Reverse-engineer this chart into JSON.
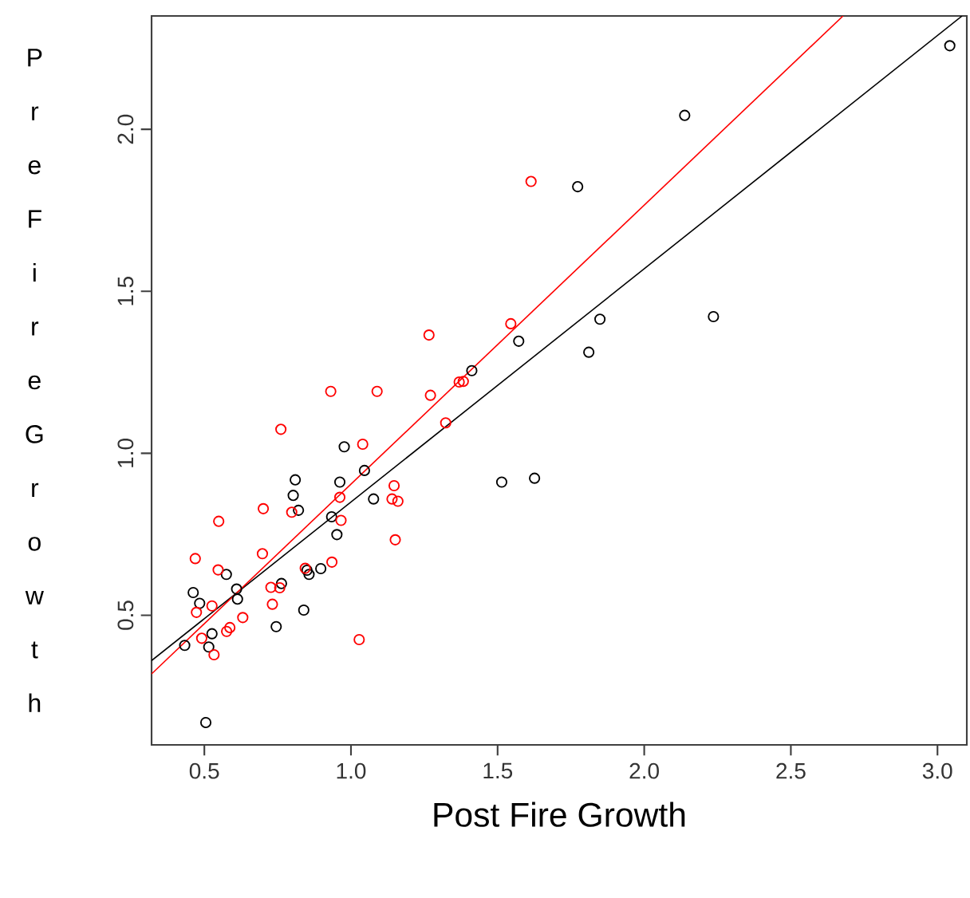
{
  "chart_data": {
    "type": "scatter",
    "xlabel": "Post Fire Growth",
    "ylabel": "Pre Fire Growth",
    "marker": "circle",
    "xlim": [
      0.32,
      3.1
    ],
    "ylim": [
      0.1,
      2.35
    ],
    "xticks": [
      0.5,
      {
        "value": 1,
        "label": "1.0"
      },
      1.5,
      {
        "value": 2,
        "label": "2.0"
      },
      2.5,
      {
        "value": 3,
        "label": "3.0"
      }
    ],
    "yticks": [
      0.5,
      {
        "value": 1,
        "label": "1.0"
      },
      1.5,
      {
        "value": 2,
        "label": "2.0"
      }
    ],
    "series": [
      {
        "color": "#000000",
        "x": [
          0.977,
          0.81,
          0.803,
          0.821,
          1.046,
          0.962,
          1.077,
          0.934,
          0.952,
          0.575,
          0.61,
          0.613,
          0.462,
          0.484,
          0.763,
          0.85,
          0.857,
          0.897,
          0.745,
          0.839,
          0.433,
          0.526,
          0.515,
          0.505,
          1.572,
          1.412,
          1.849,
          1.811,
          1.514,
          1.626,
          2.138,
          1.773,
          3.042,
          2.236
        ],
        "values": [
          1.02,
          0.918,
          0.87,
          0.824,
          0.947,
          0.911,
          0.859,
          0.804,
          0.749,
          0.626,
          0.581,
          0.55,
          0.57,
          0.537,
          0.598,
          0.639,
          0.626,
          0.644,
          0.465,
          0.516,
          0.407,
          0.443,
          0.402,
          0.169,
          1.346,
          1.255,
          1.414,
          1.312,
          0.911,
          0.923,
          2.043,
          1.823,
          2.258,
          1.422
        ]
      },
      {
        "color": "#ff0000",
        "x": [
          0.761,
          1.04,
          1.323,
          1.147,
          1.14,
          1.16,
          0.962,
          0.701,
          0.798,
          0.549,
          0.966,
          1.151,
          0.469,
          0.698,
          0.547,
          0.844,
          0.935,
          0.727,
          0.757,
          0.526,
          0.473,
          0.732,
          0.587,
          0.576,
          0.631,
          0.491,
          0.533,
          1.028,
          1.266,
          1.545,
          0.931,
          1.089,
          1.271,
          1.369,
          1.383,
          1.614
        ],
        "values": [
          1.074,
          1.028,
          1.094,
          0.9,
          0.859,
          0.852,
          0.864,
          0.829,
          0.818,
          0.79,
          0.793,
          0.733,
          0.675,
          0.69,
          0.64,
          0.645,
          0.664,
          0.586,
          0.585,
          0.529,
          0.509,
          0.534,
          0.462,
          0.45,
          0.493,
          0.429,
          0.378,
          0.425,
          1.365,
          1.4,
          1.191,
          1.191,
          1.179,
          1.22,
          1.222,
          1.839
        ]
      },
      {
        "type": "line",
        "marker": "none",
        "color": "#000000",
        "x": [
          0.32,
          3.084
        ],
        "values": [
          0.36,
          2.35
        ]
      },
      {
        "type": "line",
        "marker": "none",
        "color": "#ff0000",
        "x": [
          0.32,
          2.678
        ],
        "values": [
          0.319,
          2.35
        ]
      }
    ]
  }
}
